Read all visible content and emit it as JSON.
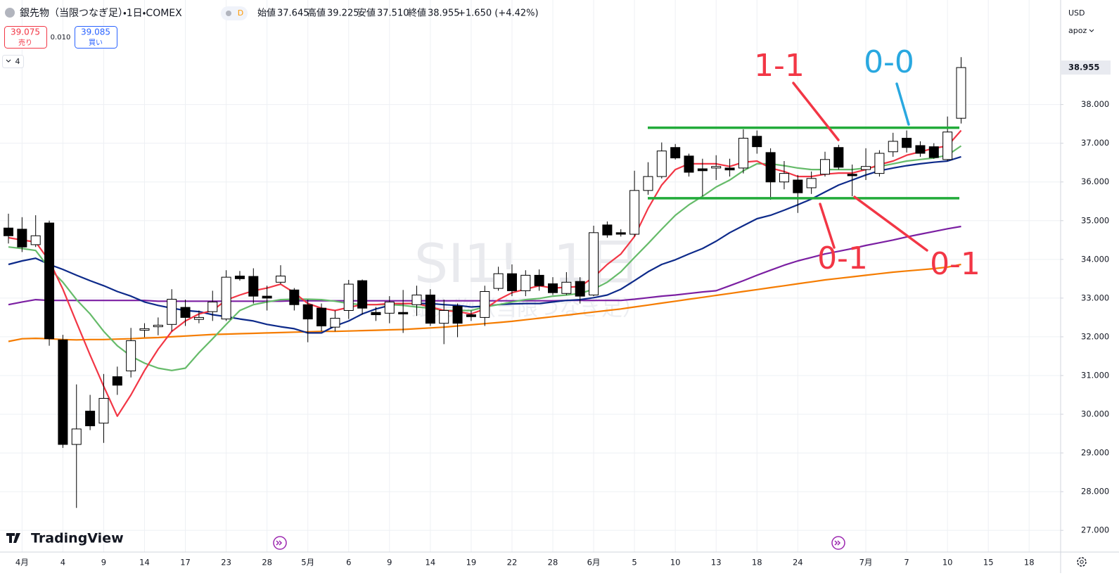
{
  "header": {
    "symbol_title": "銀先物（当限つなぎ足）・1日・COMEX",
    "interval_badge": "D",
    "open_label": "始値",
    "high_label": "高値",
    "low_label": "安値",
    "close_label": "終値",
    "low_value": "37.510",
    "change": "+1.650 (+4.42%)",
    "sell_price": "39.075",
    "sell_label": "売り",
    "spread": "0.010",
    "buy_price": "39.085",
    "buy_label": "買い",
    "indicator_count": "4",
    "currency": "USD",
    "scale_mode": "apoz",
    "logo": "TradingView"
  },
  "chart_data": {
    "type": "candlestick",
    "watermark": {
      "symbol": "SI1!, 1日",
      "description": "銀先物（当限つなぎ足）"
    },
    "categories": [
      null,
      "4月",
      null,
      null,
      "4",
      null,
      null,
      "9",
      null,
      null,
      "14",
      null,
      null,
      "17",
      null,
      null,
      "23",
      null,
      null,
      "28",
      null,
      null,
      "5月",
      null,
      null,
      "6",
      null,
      null,
      "9",
      null,
      null,
      "14",
      null,
      null,
      "19",
      null,
      null,
      "22",
      null,
      null,
      "28",
      null,
      null,
      "6月",
      null,
      null,
      "5",
      null,
      null,
      "10",
      null,
      null,
      "13",
      null,
      null,
      "18",
      null,
      null,
      "24",
      null,
      null,
      null,
      null,
      "7月",
      null,
      null,
      "7",
      null,
      null,
      "10",
      null,
      null,
      "15",
      null,
      null,
      "18"
    ],
    "open": [
      34.81,
      34.78,
      34.38,
      34.94,
      31.92,
      29.22,
      30.08,
      29.77,
      30.97,
      31.12,
      32.17,
      32.26,
      32.32,
      32.76,
      32.45,
      32.65,
      32.46,
      33.57,
      33.56,
      33.05,
      33.41,
      33.21,
      32.83,
      32.74,
      32.25,
      32.68,
      33.45,
      32.63,
      32.61,
      32.63,
      32.83,
      33.08,
      32.35,
      32.79,
      32.57,
      32.5,
      33.25,
      33.63,
      33.19,
      33.59,
      33.37,
      33.12,
      33.43,
      33.08,
      34.89,
      34.69,
      34.65,
      35.78,
      36.14,
      36.89,
      36.67,
      36.34,
      36.36,
      36.36,
      36.36,
      37.18,
      36.76,
      36.0,
      36.05,
      35.85,
      36.2,
      36.89,
      36.2,
      36.32,
      36.22,
      36.78,
      37.13,
      36.94,
      36.91,
      36.58,
      37.645,
      null,
      null,
      null,
      null,
      null
    ],
    "high": [
      35.18,
      35.09,
      35.14,
      35.0,
      32.05,
      30.77,
      30.5,
      31.04,
      31.23,
      32.23,
      32.35,
      32.5,
      33.23,
      32.96,
      32.68,
      33.19,
      33.72,
      33.7,
      33.77,
      33.32,
      33.85,
      33.26,
      32.96,
      32.86,
      32.68,
      33.47,
      33.48,
      32.77,
      33.05,
      33.21,
      33.32,
      33.23,
      32.96,
      32.86,
      32.68,
      33.32,
      33.81,
      33.87,
      33.72,
      33.74,
      33.54,
      33.67,
      33.54,
      34.87,
      34.98,
      34.78,
      36.29,
      36.51,
      37.02,
      36.98,
      36.73,
      36.6,
      36.69,
      36.6,
      37.36,
      37.33,
      36.87,
      36.54,
      36.18,
      36.27,
      36.78,
      36.96,
      36.45,
      36.87,
      36.82,
      37.27,
      37.33,
      37.05,
      37.0,
      37.69,
      39.225,
      null,
      null,
      null,
      null,
      null
    ],
    "low": [
      34.41,
      34.19,
      34.32,
      31.77,
      29.13,
      27.58,
      29.59,
      29.26,
      30.5,
      30.95,
      31.99,
      32.04,
      32.14,
      32.28,
      32.35,
      32.41,
      32.41,
      33.45,
      32.86,
      32.68,
      33.36,
      32.68,
      31.86,
      32.14,
      32.14,
      32.46,
      32.57,
      32.41,
      32.35,
      32.1,
      32.54,
      32.28,
      31.81,
      31.99,
      32.41,
      32.28,
      33.19,
      33.05,
      33.05,
      33.19,
      33.08,
      33.08,
      32.86,
      33.05,
      34.56,
      34.59,
      34.59,
      35.67,
      36.09,
      36.58,
      36.14,
      35.63,
      36.05,
      36.14,
      36.22,
      36.73,
      35.54,
      35.81,
      35.2,
      35.69,
      36.14,
      36.32,
      35.63,
      36.05,
      36.14,
      36.65,
      36.76,
      36.65,
      36.6,
      36.54,
      37.51,
      null,
      null,
      null,
      null,
      null
    ],
    "close": [
      34.61,
      34.32,
      34.61,
      31.95,
      29.22,
      29.62,
      29.7,
      30.41,
      30.75,
      31.9,
      32.21,
      32.3,
      32.97,
      32.5,
      32.5,
      32.9,
      33.54,
      33.5,
      33.05,
      33.0,
      33.57,
      32.83,
      32.46,
      32.28,
      32.48,
      33.36,
      32.74,
      32.57,
      32.9,
      32.59,
      33.08,
      32.35,
      32.68,
      32.35,
      32.52,
      33.17,
      33.63,
      33.19,
      33.59,
      33.32,
      33.14,
      33.41,
      33.05,
      34.69,
      34.63,
      34.65,
      35.78,
      36.14,
      36.8,
      36.62,
      36.25,
      36.29,
      36.4,
      36.31,
      37.13,
      36.91,
      36.0,
      36.22,
      35.72,
      36.09,
      36.58,
      36.38,
      36.16,
      36.4,
      36.74,
      37.05,
      36.89,
      36.74,
      36.63,
      37.29,
      38.955,
      null,
      null,
      null,
      null,
      null
    ],
    "up_color": "#ffffff",
    "down_color": "#000000",
    "ma_lines": [
      {
        "color": "#f57c00",
        "values": [
          31.88,
          31.95,
          31.96,
          31.95,
          31.93,
          31.92,
          31.93,
          31.93,
          31.94,
          31.95,
          31.97,
          31.98,
          32.0,
          32.02,
          32.04,
          32.06,
          32.07,
          32.08,
          32.09,
          32.1,
          32.11,
          32.12,
          32.13,
          32.14,
          32.14,
          32.15,
          32.16,
          32.17,
          32.18,
          32.19,
          32.21,
          32.23,
          32.25,
          32.28,
          32.31,
          32.34,
          32.37,
          32.4,
          32.44,
          32.48,
          32.52,
          32.56,
          32.6,
          32.64,
          32.68,
          32.72,
          32.77,
          32.82,
          32.87,
          32.92,
          32.97,
          33.02,
          33.07,
          33.12,
          33.17,
          33.22,
          33.27,
          33.32,
          33.37,
          33.42,
          33.47,
          33.51,
          33.55,
          33.59,
          33.63,
          33.67,
          33.7,
          33.73,
          33.76,
          33.8,
          33.87,
          null,
          null,
          null,
          null,
          null
        ]
      },
      {
        "color": "#7b1fa2",
        "values": [
          32.83,
          32.9,
          32.96,
          32.94,
          32.94,
          32.94,
          32.94,
          32.94,
          32.94,
          32.94,
          32.94,
          32.92,
          32.92,
          32.92,
          32.92,
          32.92,
          32.92,
          32.92,
          32.92,
          32.92,
          32.92,
          32.93,
          32.93,
          32.93,
          32.93,
          32.93,
          32.93,
          32.93,
          32.93,
          32.93,
          32.93,
          32.93,
          32.93,
          32.93,
          32.93,
          32.93,
          32.93,
          32.93,
          32.93,
          32.93,
          32.93,
          32.94,
          32.94,
          32.94,
          32.94,
          32.94,
          32.97,
          33.01,
          33.05,
          33.08,
          33.12,
          33.16,
          33.19,
          33.32,
          33.45,
          33.59,
          33.72,
          33.85,
          33.96,
          34.05,
          34.14,
          34.21,
          34.28,
          34.36,
          34.43,
          34.5,
          34.58,
          34.65,
          34.72,
          34.79,
          34.85,
          null,
          null,
          null,
          null,
          null
        ]
      },
      {
        "color": "#0d2a8a",
        "values": [
          33.87,
          33.96,
          34.03,
          33.87,
          33.74,
          33.59,
          33.45,
          33.32,
          33.17,
          33.05,
          32.9,
          32.81,
          32.74,
          32.68,
          32.65,
          32.57,
          32.52,
          32.46,
          32.41,
          32.32,
          32.26,
          32.21,
          32.1,
          32.1,
          32.28,
          32.41,
          32.59,
          32.72,
          32.81,
          32.86,
          32.86,
          32.86,
          32.83,
          32.81,
          32.77,
          32.79,
          32.83,
          32.85,
          32.86,
          32.86,
          32.9,
          32.94,
          32.96,
          33.01,
          33.08,
          33.23,
          33.45,
          33.68,
          33.87,
          33.99,
          34.14,
          34.28,
          34.47,
          34.69,
          34.87,
          35.05,
          35.14,
          35.27,
          35.41,
          35.56,
          35.74,
          35.92,
          36.05,
          36.18,
          36.29,
          36.36,
          36.42,
          36.47,
          36.51,
          36.54,
          36.65,
          null,
          null,
          null,
          null,
          null
        ]
      },
      {
        "color": "#66bb6a",
        "values": [
          34.32,
          34.28,
          34.23,
          33.77,
          33.41,
          32.96,
          32.59,
          32.14,
          31.77,
          31.5,
          31.32,
          31.19,
          31.13,
          31.19,
          31.59,
          31.95,
          32.32,
          32.68,
          32.83,
          32.9,
          32.96,
          32.97,
          32.97,
          32.96,
          32.92,
          32.86,
          32.83,
          32.83,
          32.83,
          32.81,
          32.77,
          32.74,
          32.68,
          32.68,
          32.68,
          32.77,
          32.83,
          32.9,
          32.96,
          32.99,
          33.05,
          33.08,
          33.12,
          33.23,
          33.41,
          33.68,
          34.05,
          34.41,
          34.78,
          35.14,
          35.41,
          35.63,
          35.87,
          36.05,
          36.29,
          36.47,
          36.47,
          36.42,
          36.36,
          36.32,
          36.32,
          36.32,
          36.32,
          36.36,
          36.4,
          36.47,
          36.54,
          36.58,
          36.62,
          36.69,
          36.93,
          null,
          null,
          null,
          null,
          null
        ]
      },
      {
        "color": "#f23645",
        "values": [
          34.56,
          34.5,
          34.45,
          33.96,
          33.23,
          32.37,
          31.53,
          30.72,
          29.95,
          30.5,
          31.13,
          31.68,
          32.14,
          32.41,
          32.59,
          32.68,
          32.95,
          33.08,
          33.19,
          33.26,
          33.36,
          33.14,
          32.86,
          32.74,
          32.68,
          32.76,
          32.83,
          32.83,
          32.86,
          32.86,
          32.86,
          32.77,
          32.68,
          32.65,
          32.59,
          32.72,
          32.96,
          33.14,
          33.23,
          33.32,
          33.26,
          33.28,
          33.3,
          33.54,
          33.87,
          34.14,
          34.59,
          35.32,
          35.92,
          36.32,
          36.47,
          36.47,
          36.47,
          36.4,
          36.51,
          36.54,
          36.36,
          36.27,
          36.14,
          36.14,
          36.2,
          36.23,
          36.23,
          36.32,
          36.45,
          36.54,
          36.69,
          36.78,
          36.87,
          36.93,
          37.33,
          null,
          null,
          null,
          null,
          null
        ]
      }
    ],
    "levels": [
      {
        "value": 37.4,
        "color": "#22ab3a"
      },
      {
        "value": 35.58,
        "color": "#22ab3a"
      }
    ],
    "annotations": [
      {
        "text": "1-1",
        "color": "#f23645"
      },
      {
        "text": "0-0",
        "color": "#29a8e0"
      },
      {
        "text": "0-1",
        "color": "#f23645"
      },
      {
        "text": "0-1",
        "color": "#f23645"
      }
    ],
    "ylim": [
      26.44,
      40.7
    ],
    "yticks": [
      {
        "value": 27,
        "label": "27.000"
      },
      {
        "value": 28,
        "label": "28.000"
      },
      {
        "value": 29,
        "label": "29.000"
      },
      {
        "value": 30,
        "label": "30.000"
      },
      {
        "value": 31,
        "label": "31.000"
      },
      {
        "value": 32,
        "label": "32.000"
      },
      {
        "value": 33,
        "label": "33.000"
      },
      {
        "value": 34,
        "label": "34.000"
      },
      {
        "value": 35,
        "label": "35.000"
      },
      {
        "value": 36,
        "label": "36.000"
      },
      {
        "value": 37,
        "label": "37.000"
      },
      {
        "value": 38,
        "label": "38.000"
      }
    ],
    "grid": true
  }
}
